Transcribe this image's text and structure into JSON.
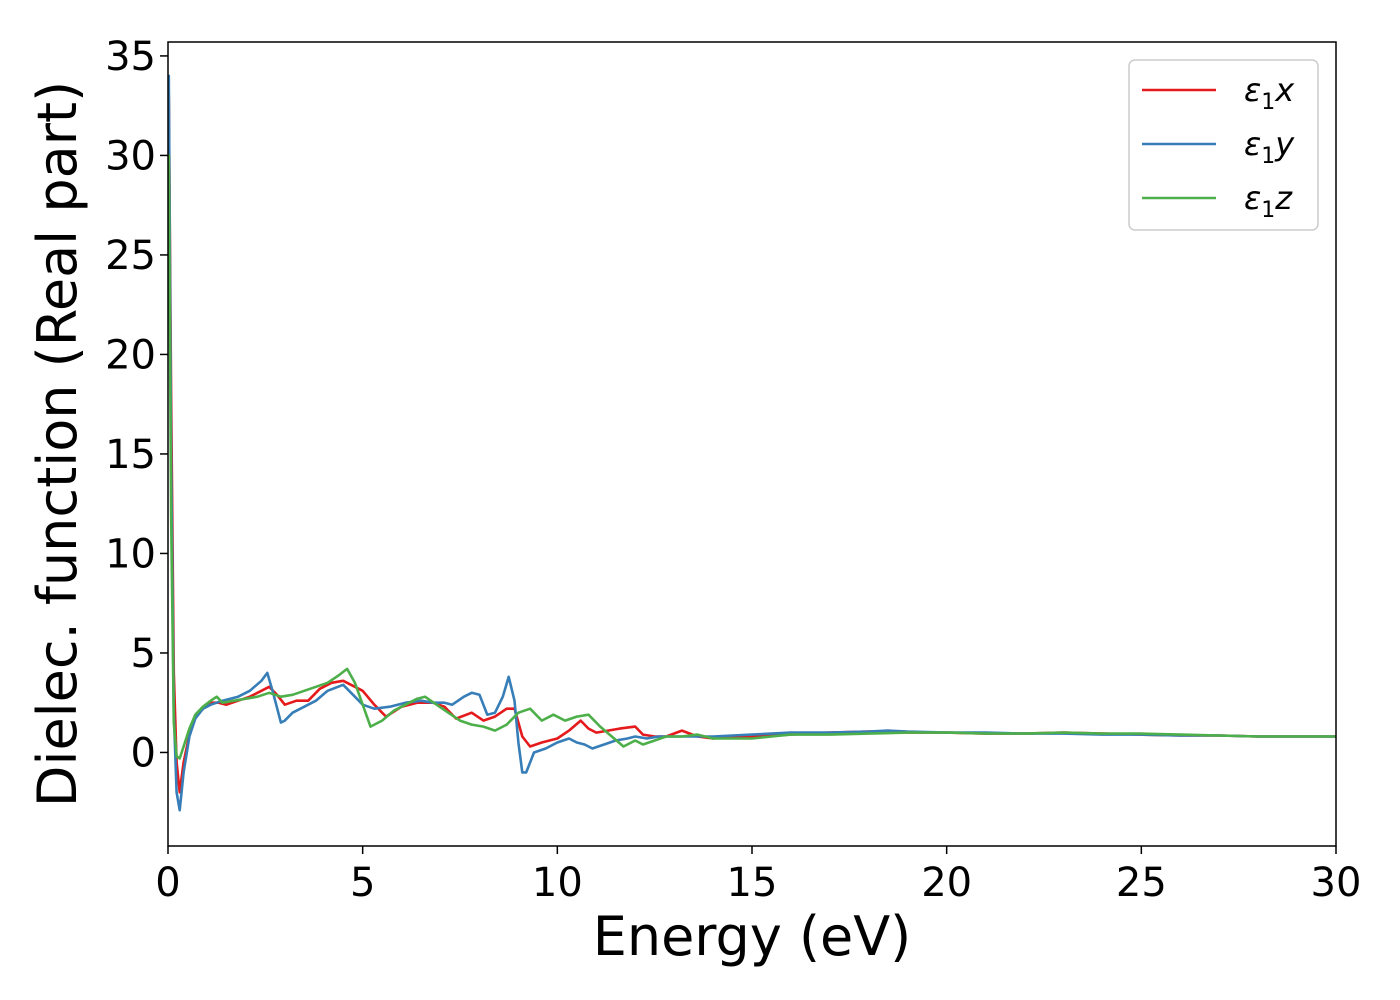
{
  "chart_data": {
    "type": "line",
    "title": "",
    "xlabel": "Energy (eV)",
    "ylabel": "Dielec. function (Real part)",
    "xlim": [
      0,
      30
    ],
    "ylim": [
      -4.7,
      35.7
    ],
    "xticks": [
      0,
      5,
      10,
      15,
      20,
      25,
      30
    ],
    "yticks": [
      0,
      5,
      10,
      15,
      20,
      25,
      30,
      35
    ],
    "grid": false,
    "legend_position": "top-right",
    "series": [
      {
        "name": "ε₁x",
        "legend_base": "ε",
        "legend_sub": "1",
        "legend_suffix": "x",
        "color": "#e41a1c",
        "x": [
          0.02,
          0.08,
          0.15,
          0.22,
          0.3,
          0.4,
          0.55,
          0.7,
          0.9,
          1.1,
          1.3,
          1.5,
          1.8,
          2.1,
          2.4,
          2.6,
          2.8,
          3.0,
          3.3,
          3.6,
          3.9,
          4.2,
          4.5,
          4.8,
          5.0,
          5.3,
          5.6,
          6.0,
          6.4,
          6.8,
          7.1,
          7.4,
          7.8,
          8.1,
          8.4,
          8.7,
          8.9,
          9.1,
          9.3,
          9.6,
          10.0,
          10.3,
          10.6,
          10.8,
          11.0,
          11.3,
          11.6,
          12.0,
          12.2,
          12.5,
          12.8,
          13.2,
          13.6,
          14.0,
          14.5,
          15.0,
          16.0,
          17.0,
          18.0,
          19.0,
          20.0,
          21.0,
          22.0,
          23.0,
          24.0,
          25.0,
          26.0,
          27.0,
          28.0,
          29.0,
          30.0
        ],
        "y": [
          33.0,
          18.0,
          4.0,
          -0.5,
          -2.0,
          -0.5,
          0.9,
          1.8,
          2.2,
          2.5,
          2.5,
          2.4,
          2.6,
          2.8,
          3.1,
          3.3,
          2.9,
          2.4,
          2.6,
          2.6,
          3.2,
          3.5,
          3.6,
          3.3,
          3.1,
          2.4,
          1.8,
          2.3,
          2.5,
          2.5,
          2.3,
          1.7,
          2.0,
          1.6,
          1.8,
          2.2,
          2.2,
          0.8,
          0.3,
          0.5,
          0.7,
          1.1,
          1.6,
          1.2,
          1.0,
          1.1,
          1.2,
          1.3,
          0.9,
          0.8,
          0.8,
          1.1,
          0.8,
          0.7,
          0.8,
          0.8,
          0.9,
          1.0,
          1.05,
          1.0,
          1.0,
          0.95,
          0.95,
          1.0,
          0.95,
          0.9,
          0.85,
          0.85,
          0.8,
          0.8,
          0.8
        ]
      },
      {
        "name": "ε₁y",
        "legend_base": "ε",
        "legend_sub": "1",
        "legend_suffix": "y",
        "color": "#377eb8",
        "x": [
          0.02,
          0.08,
          0.15,
          0.22,
          0.3,
          0.4,
          0.55,
          0.7,
          0.9,
          1.1,
          1.4,
          1.8,
          2.1,
          2.4,
          2.55,
          2.7,
          2.9,
          3.0,
          3.2,
          3.5,
          3.8,
          4.1,
          4.5,
          4.8,
          5.0,
          5.3,
          5.7,
          6.1,
          6.5,
          6.8,
          7.1,
          7.3,
          7.6,
          7.8,
          8.0,
          8.2,
          8.4,
          8.6,
          8.75,
          8.9,
          9.0,
          9.1,
          9.2,
          9.4,
          9.7,
          10.0,
          10.3,
          10.5,
          10.7,
          10.9,
          11.2,
          11.5,
          11.8,
          12.0,
          12.3,
          12.6,
          13.0,
          13.5,
          14.0,
          15.0,
          16.0,
          17.0,
          18.0,
          18.5,
          19.0,
          20.0,
          21.0,
          22.0,
          23.0,
          24.0,
          25.0,
          26.0,
          27.0,
          28.0,
          29.0,
          30.0
        ],
        "y": [
          34.0,
          15.0,
          2.0,
          -2.0,
          -2.9,
          -1.0,
          0.8,
          1.7,
          2.2,
          2.4,
          2.6,
          2.8,
          3.1,
          3.6,
          4.0,
          3.0,
          1.5,
          1.6,
          2.0,
          2.3,
          2.6,
          3.1,
          3.4,
          2.8,
          2.4,
          2.2,
          2.3,
          2.5,
          2.6,
          2.5,
          2.5,
          2.4,
          2.8,
          3.0,
          2.9,
          1.9,
          2.0,
          2.8,
          3.8,
          2.6,
          0.5,
          -1.0,
          -1.0,
          0.0,
          0.2,
          0.5,
          0.7,
          0.5,
          0.4,
          0.2,
          0.4,
          0.6,
          0.7,
          0.8,
          0.7,
          0.8,
          0.8,
          0.8,
          0.8,
          0.9,
          1.0,
          1.0,
          1.05,
          1.1,
          1.05,
          1.0,
          1.0,
          0.95,
          0.95,
          0.9,
          0.9,
          0.85,
          0.85,
          0.8,
          0.8,
          0.8
        ]
      },
      {
        "name": "ε₁z",
        "legend_base": "ε",
        "legend_sub": "1",
        "legend_suffix": "z",
        "color": "#4daf4a",
        "x": [
          0.02,
          0.08,
          0.15,
          0.22,
          0.3,
          0.4,
          0.55,
          0.7,
          0.9,
          1.1,
          1.25,
          1.4,
          1.7,
          2.0,
          2.3,
          2.6,
          2.9,
          3.2,
          3.5,
          3.8,
          4.1,
          4.4,
          4.6,
          4.8,
          5.0,
          5.2,
          5.5,
          5.8,
          6.1,
          6.4,
          6.6,
          6.9,
          7.2,
          7.5,
          7.8,
          8.1,
          8.4,
          8.7,
          9.0,
          9.3,
          9.6,
          9.9,
          10.2,
          10.5,
          10.8,
          11.1,
          11.4,
          11.7,
          12.0,
          12.2,
          12.5,
          12.8,
          13.2,
          13.6,
          14.0,
          14.5,
          15.0,
          15.5,
          16.0,
          17.0,
          18.0,
          19.0,
          20.0,
          21.0,
          22.0,
          23.0,
          24.0,
          25.0,
          26.0,
          27.0,
          28.0,
          29.0,
          30.0
        ],
        "y": [
          30.0,
          12.0,
          1.5,
          -0.2,
          -0.3,
          0.3,
          1.2,
          1.9,
          2.3,
          2.6,
          2.8,
          2.5,
          2.6,
          2.7,
          2.8,
          3.0,
          2.8,
          2.9,
          3.1,
          3.3,
          3.5,
          3.9,
          4.2,
          3.5,
          2.4,
          1.3,
          1.6,
          2.1,
          2.4,
          2.7,
          2.8,
          2.4,
          2.0,
          1.6,
          1.4,
          1.3,
          1.1,
          1.4,
          2.0,
          2.2,
          1.6,
          1.9,
          1.6,
          1.8,
          1.9,
          1.3,
          0.8,
          0.3,
          0.6,
          0.4,
          0.6,
          0.8,
          0.8,
          0.9,
          0.7,
          0.7,
          0.7,
          0.8,
          0.9,
          0.9,
          0.95,
          1.0,
          1.0,
          0.95,
          0.95,
          1.0,
          0.95,
          0.95,
          0.9,
          0.85,
          0.8,
          0.8,
          0.8
        ]
      }
    ]
  }
}
